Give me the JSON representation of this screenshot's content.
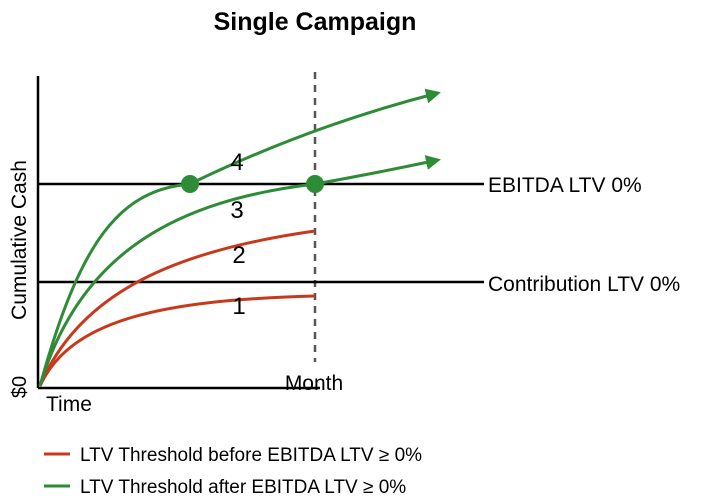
{
  "title": "Single Campaign",
  "y_axis_label": "Cumulative Cash",
  "y_origin_label": "$0",
  "x_origin_label": "Time",
  "month_label": "Month",
  "thresholds": [
    {
      "label": "EBITDA LTV 0%"
    },
    {
      "label": "Contribution LTV 0%"
    }
  ],
  "curves": [
    {
      "number": "1",
      "color": "#c8391b",
      "arrow": false
    },
    {
      "number": "2",
      "color": "#c8391b",
      "arrow": false
    },
    {
      "number": "3",
      "color": "#2e8b36",
      "arrow": true
    },
    {
      "number": "4",
      "color": "#2e8b36",
      "arrow": true
    }
  ],
  "legend": [
    {
      "label": "LTV Threshold before EBITDA LTV ≥ 0%",
      "color": "#c8391b"
    },
    {
      "label": "LTV Threshold after EBITDA LTV ≥ 0%",
      "color": "#2e8b36"
    }
  ],
  "colors": {
    "red": "#c8391b",
    "green": "#2e8b36",
    "axis": "#000000",
    "dashed": "#555555"
  }
}
